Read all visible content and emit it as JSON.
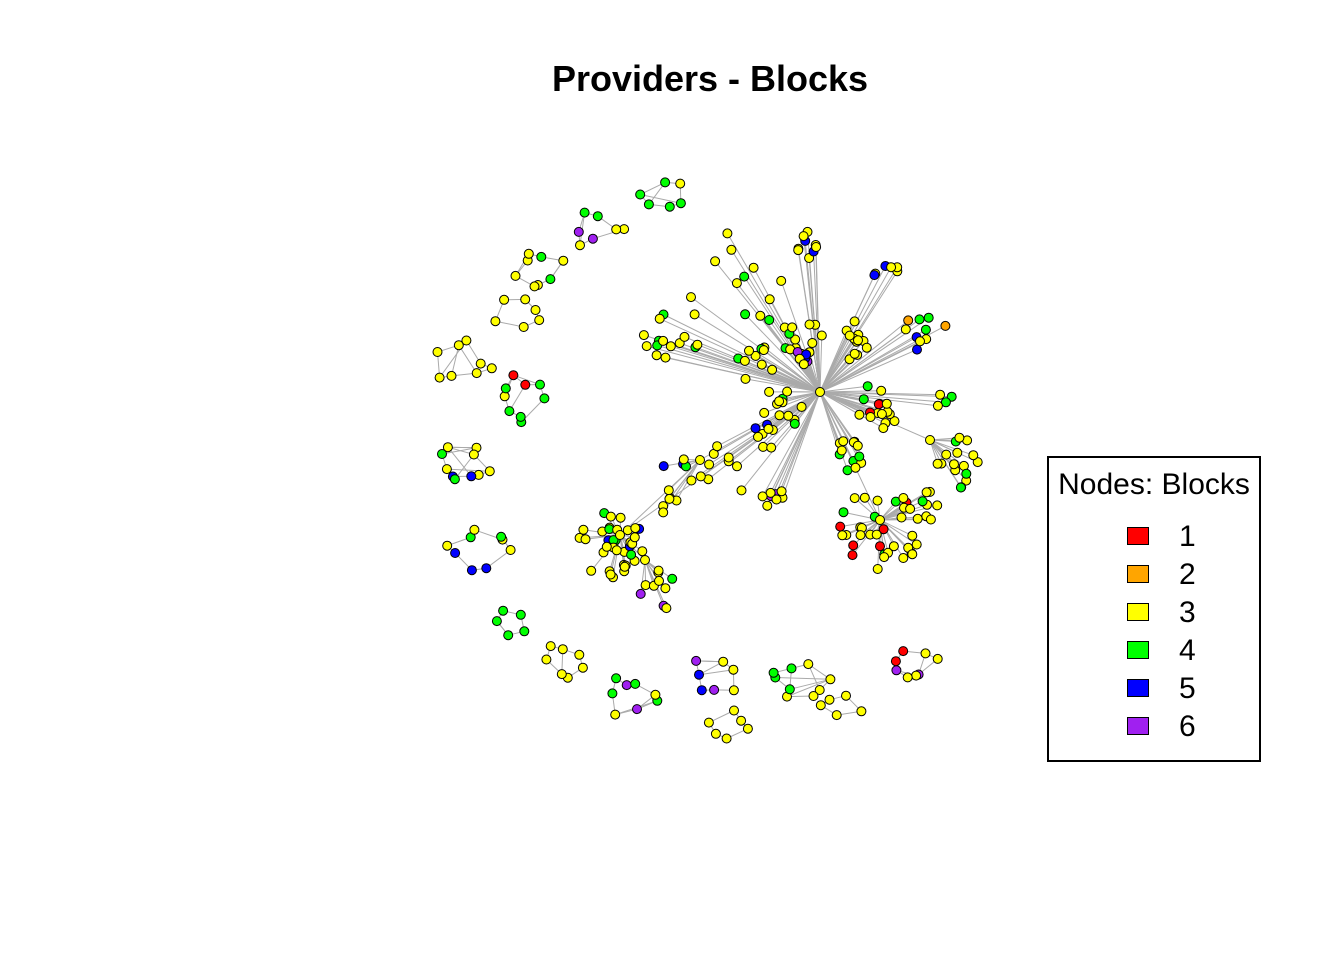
{
  "title": "Providers - Blocks",
  "legend": {
    "title": "Nodes: Blocks",
    "items": [
      {
        "label": "1",
        "color": "#ff0000"
      },
      {
        "label": "2",
        "color": "#ffa500"
      },
      {
        "label": "3",
        "color": "#ffff00"
      },
      {
        "label": "4",
        "color": "#00ff00"
      },
      {
        "label": "5",
        "color": "#0000ff"
      },
      {
        "label": "6",
        "color": "#a020f0"
      }
    ]
  },
  "graph": {
    "edge_color": "#aaaaaa",
    "node_border": "#000000"
  }
}
